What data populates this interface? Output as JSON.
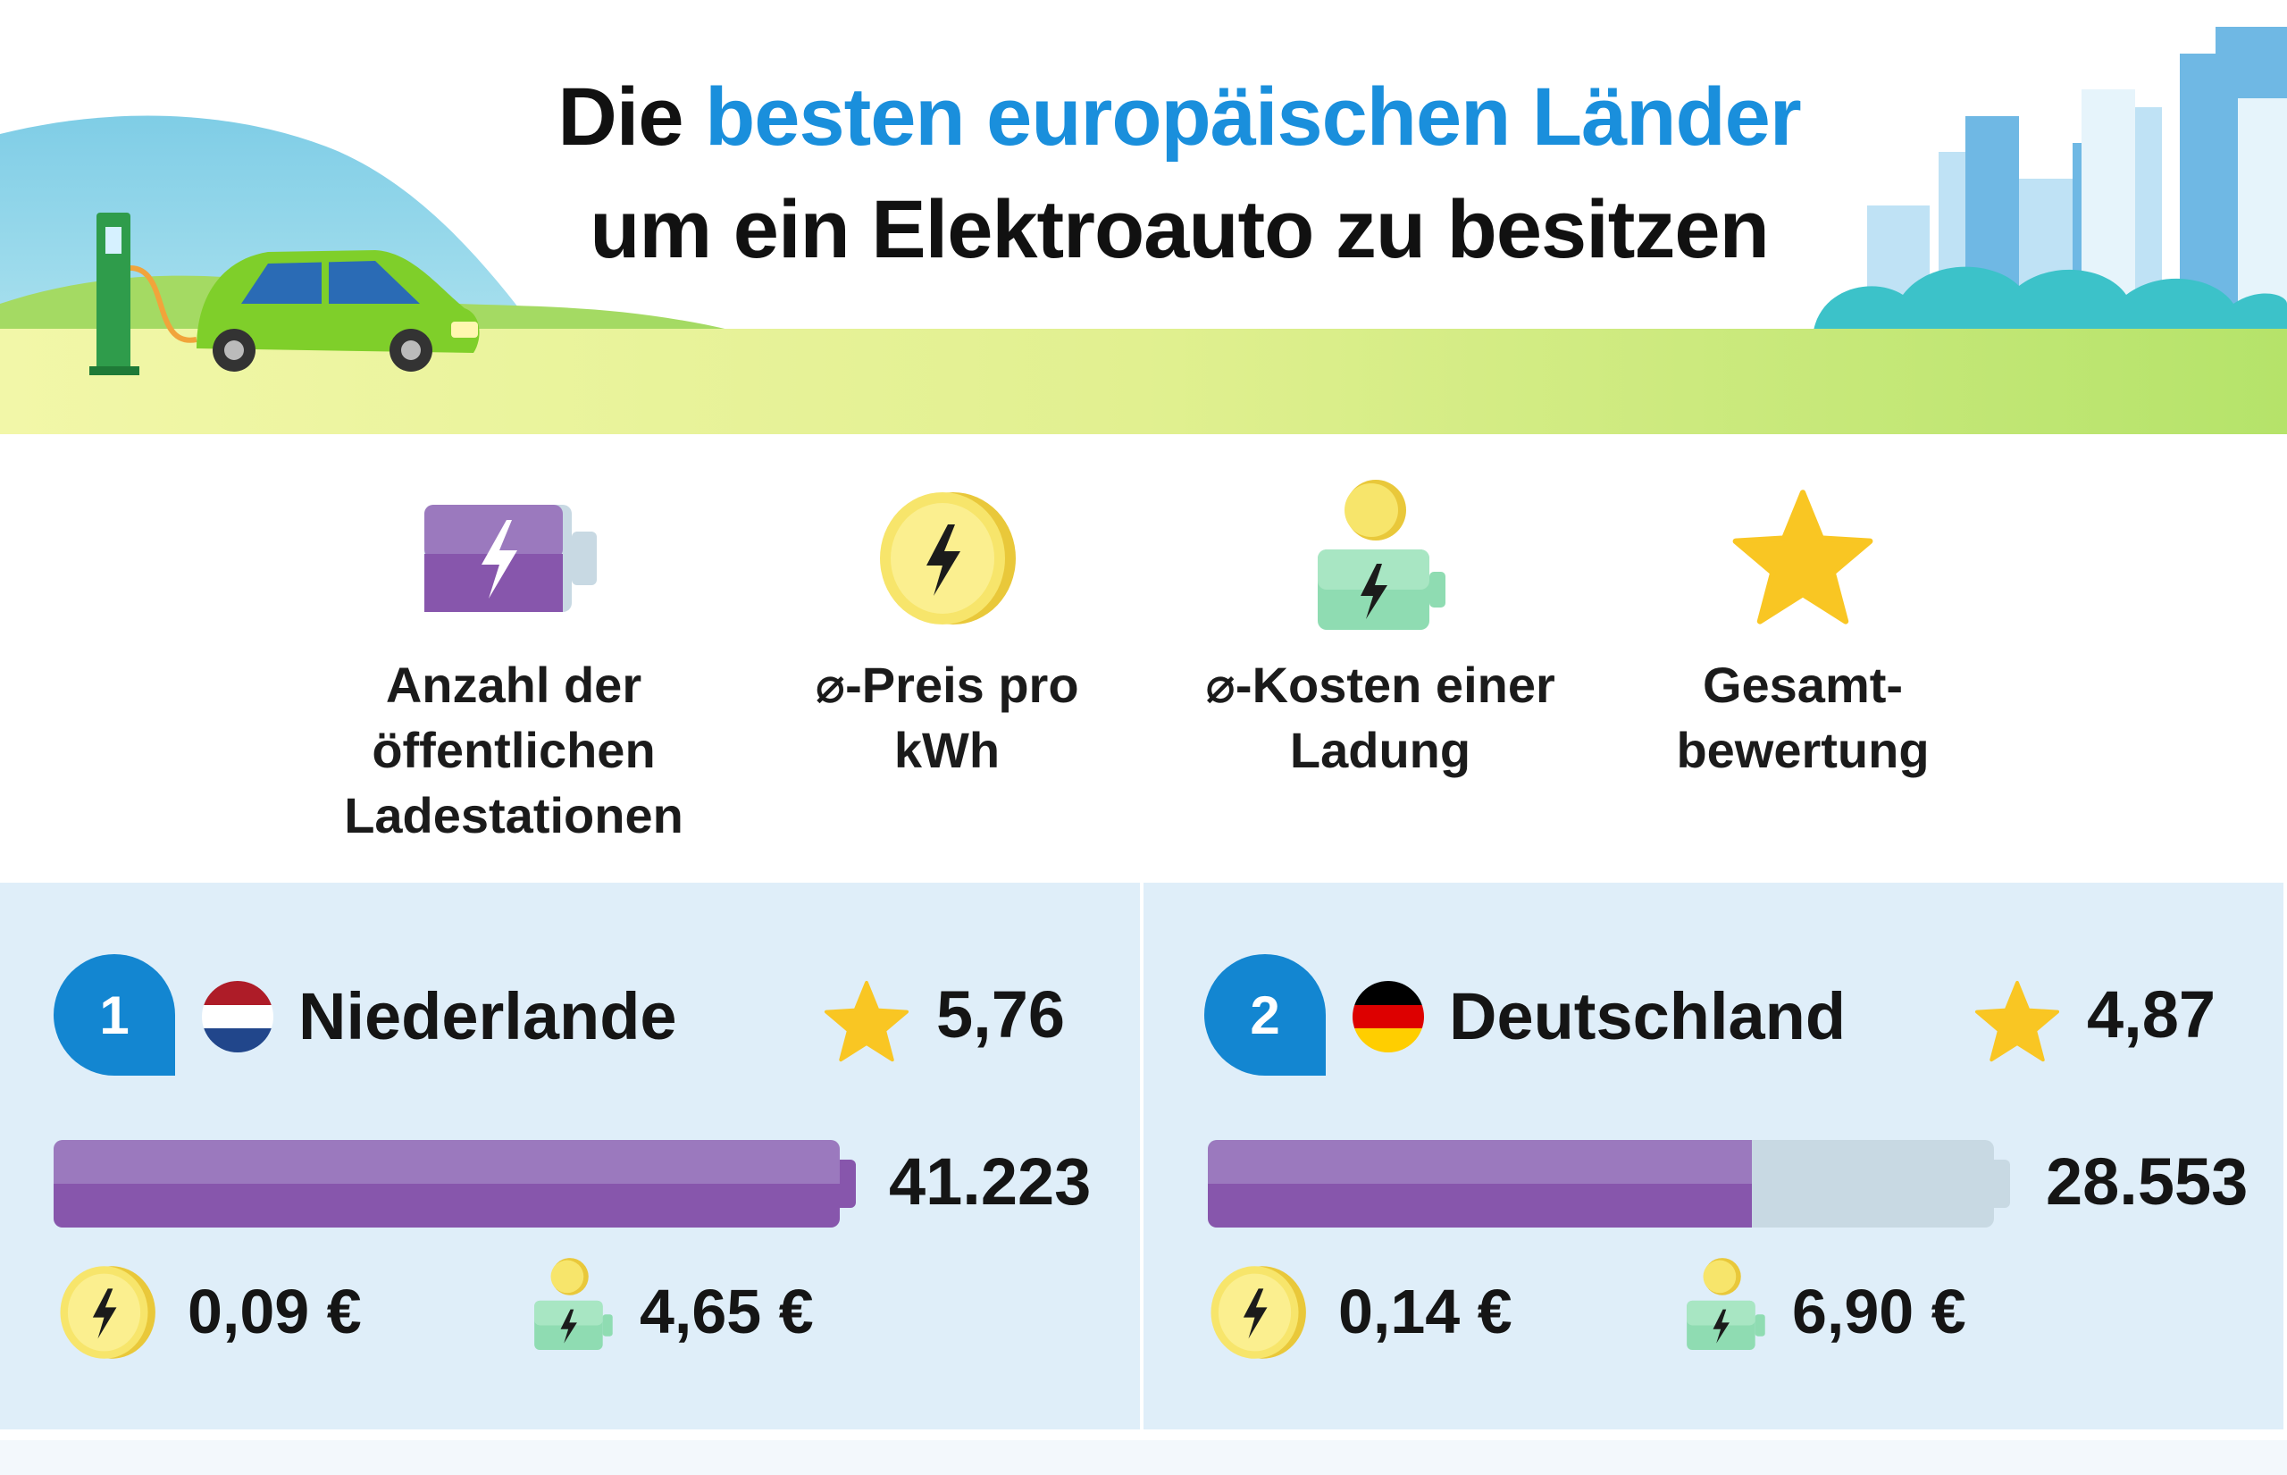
{
  "header": {
    "title_part1": "Die",
    "title_accent": "besten europäischen Länder",
    "title_line2": "um ein Elektroauto zu besitzen"
  },
  "legend": [
    {
      "icon": "battery-icon",
      "label_lines": [
        "Anzahl der",
        "öffentlichen",
        "Ladestationen"
      ]
    },
    {
      "icon": "coin-lightning-icon",
      "label_lines": [
        "⌀-Preis pro",
        "kWh"
      ]
    },
    {
      "icon": "charge-cost-icon",
      "label_lines": [
        "⌀-Kosten einer",
        "Ladung"
      ]
    },
    {
      "icon": "star-icon",
      "label_lines": [
        "Gesamt-",
        "bewertung"
      ]
    }
  ],
  "countries": [
    {
      "rank": "1",
      "name": "Niederlande",
      "flag": [
        "#ae1c28",
        "#ffffff",
        "#21468b"
      ],
      "score": "5,76",
      "stations": "41.223",
      "stations_share": 1.0,
      "price_kwh": "0,09 €",
      "charge_cost": "4,65 €"
    },
    {
      "rank": "2",
      "name": "Deutschland",
      "flag": [
        "#000000",
        "#dd0000",
        "#ffce00"
      ],
      "score": "4,87",
      "stations": "28.553",
      "stations_share": 0.6926,
      "price_kwh": "0,14 €",
      "charge_cost": "6,90 €"
    }
  ],
  "colors": {
    "accent": "#1a8fdc",
    "badge": "#1386d1",
    "panel_bg": "#dfeef9",
    "bar_purple": "#8756ac",
    "star": "#f9c623"
  }
}
